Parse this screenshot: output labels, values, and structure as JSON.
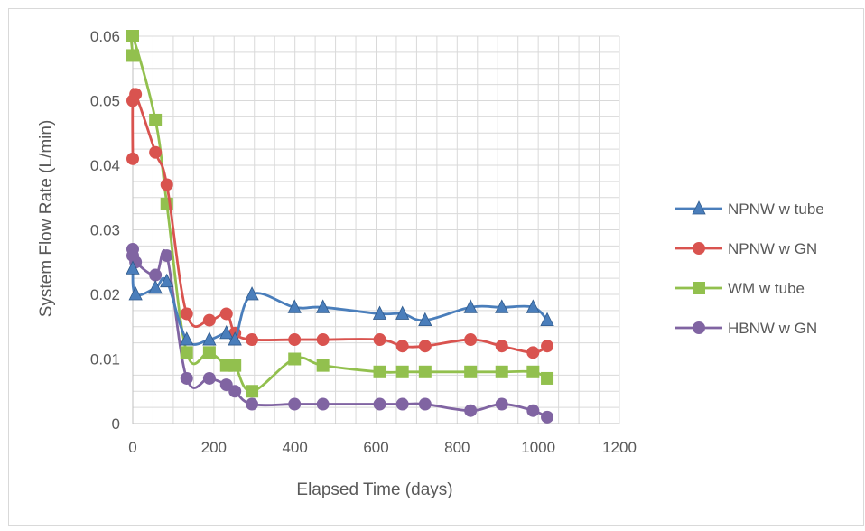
{
  "chart_data": {
    "type": "line",
    "title": "",
    "xlabel": "Elapsed Time (days)",
    "ylabel": "System Flow Rate (L/min)",
    "xlim": [
      0,
      1200
    ],
    "ylim": [
      0,
      0.06
    ],
    "x_ticks": [
      0,
      200,
      400,
      600,
      800,
      1000,
      1200
    ],
    "x_tick_labels": [
      "0",
      "200",
      "400",
      "600",
      "800",
      "1000",
      "1200"
    ],
    "y_ticks": [
      0,
      0.01,
      0.02,
      0.03,
      0.04,
      0.05,
      0.06
    ],
    "y_tick_labels": [
      "0",
      "0.01",
      "0.02",
      "0.03",
      "0.04",
      "0.05",
      "0.06"
    ],
    "grid": true,
    "legend_position": "right",
    "series": [
      {
        "name": "NPNW w tube",
        "color": "#4a7ebb",
        "marker": "triangle",
        "x": [
          0,
          7,
          56,
          84,
          133,
          189,
          231,
          252,
          294,
          399,
          469,
          609,
          665,
          721,
          833,
          910,
          987,
          1022
        ],
        "y": [
          0.024,
          0.02,
          0.021,
          0.022,
          0.013,
          0.013,
          0.014,
          0.013,
          0.02,
          0.018,
          0.018,
          0.017,
          0.017,
          0.016,
          0.018,
          0.018,
          0.018,
          0.016
        ]
      },
      {
        "name": "NPNW w GN",
        "color": "#d9534f",
        "marker": "circle",
        "x": [
          0,
          0,
          7,
          56,
          84,
          133,
          189,
          231,
          252,
          294,
          399,
          469,
          609,
          665,
          721,
          833,
          910,
          987,
          1022
        ],
        "y": [
          0.041,
          0.05,
          0.051,
          0.042,
          0.037,
          0.017,
          0.016,
          0.017,
          0.014,
          0.013,
          0.013,
          0.013,
          0.013,
          0.012,
          0.012,
          0.013,
          0.012,
          0.011,
          0.012
        ]
      },
      {
        "name": "WM w tube",
        "color": "#92c04e",
        "marker": "square",
        "x": [
          0,
          0,
          56,
          84,
          133,
          189,
          231,
          252,
          294,
          399,
          469,
          609,
          665,
          721,
          833,
          910,
          987,
          1022
        ],
        "y": [
          0.057,
          0.06,
          0.047,
          0.034,
          0.011,
          0.011,
          0.009,
          0.009,
          0.005,
          0.01,
          0.009,
          0.008,
          0.008,
          0.008,
          0.008,
          0.008,
          0.008,
          0.007
        ]
      },
      {
        "name": "HBNW w GN",
        "color": "#8064a2",
        "marker": "circle",
        "x": [
          0,
          0,
          7,
          56,
          84,
          133,
          189,
          231,
          252,
          294,
          399,
          469,
          609,
          665,
          721,
          833,
          910,
          987,
          1022
        ],
        "y": [
          0.027,
          0.026,
          0.025,
          0.023,
          0.026,
          0.007,
          0.007,
          0.006,
          0.005,
          0.003,
          0.003,
          0.003,
          0.003,
          0.003,
          0.003,
          0.002,
          0.003,
          0.002,
          0.001
        ]
      }
    ]
  }
}
